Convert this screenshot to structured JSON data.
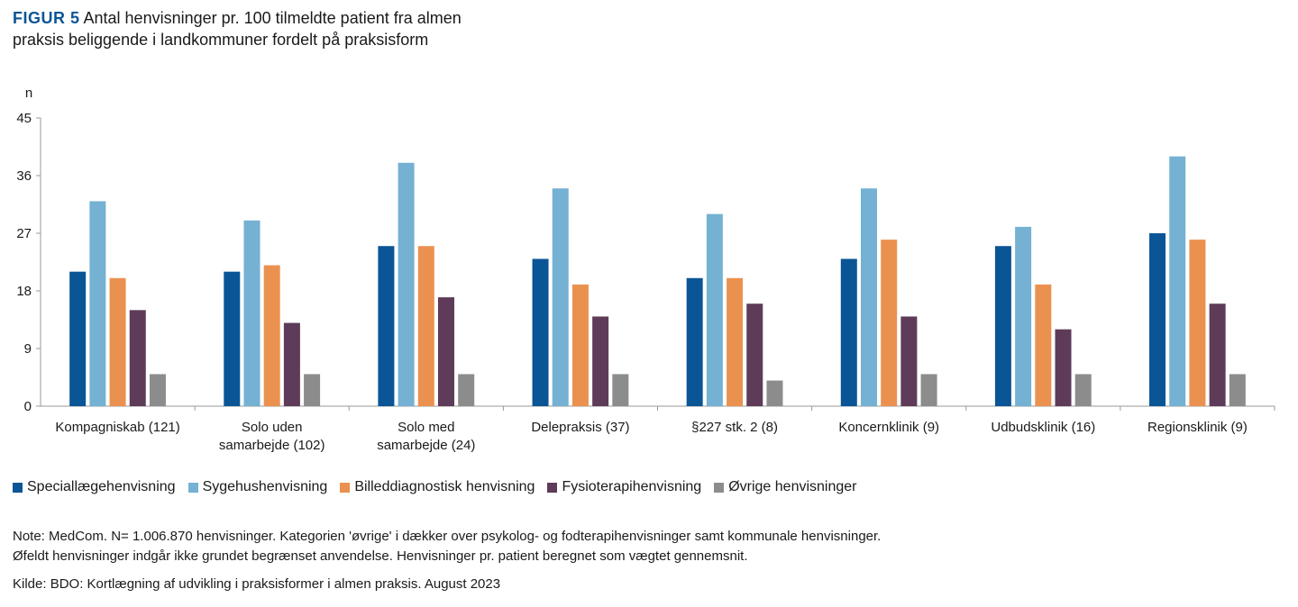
{
  "figure": {
    "label": "FIGUR 5",
    "title_line1": "Antal henvisninger pr. 100 tilmeldte patient fra almen",
    "title_line2": "praksis beliggende i landkommuner fordelt på praksisform"
  },
  "chart_data": {
    "type": "bar",
    "ylabel": "n",
    "ylim": [
      0,
      45
    ],
    "yticks": [
      0,
      9,
      18,
      27,
      36,
      45
    ],
    "grid": false,
    "legend_position": "bottom",
    "categories": [
      [
        "Kompagniskab (121)"
      ],
      [
        "Solo uden",
        "samarbejde (102)"
      ],
      [
        "Solo med",
        "samarbejde (24)"
      ],
      [
        "Delepraksis (37)"
      ],
      [
        "§227 stk. 2 (8)"
      ],
      [
        "Koncernklinik (9)"
      ],
      [
        "Udbudsklinik (16)"
      ],
      [
        "Regionsklinik (9)"
      ]
    ],
    "series": [
      {
        "name": "Speciallægehenvisning",
        "color": "#0a5596",
        "values": [
          21,
          21,
          25,
          23,
          20,
          23,
          25,
          27
        ]
      },
      {
        "name": "Sygehushenvisning",
        "color": "#74b1d3",
        "values": [
          32,
          29,
          38,
          34,
          30,
          34,
          28,
          39
        ]
      },
      {
        "name": "Billeddiagnostisk henvisning",
        "color": "#eb9150",
        "values": [
          20,
          22,
          25,
          19,
          20,
          26,
          19,
          26
        ]
      },
      {
        "name": "Fysioterapihenvisning",
        "color": "#5e3b58",
        "values": [
          15,
          13,
          17,
          14,
          16,
          14,
          12,
          16
        ]
      },
      {
        "name": "Øvrige henvisninger",
        "color": "#8c8c8c",
        "values": [
          5,
          5,
          5,
          5,
          4,
          5,
          5,
          5
        ]
      }
    ]
  },
  "note": {
    "line1": "Note: MedCom. N= 1.006.870 henvisninger. Kategorien 'øvrige' i dækker over psykolog- og fodterapihenvisninger samt kommunale henvisninger.",
    "line2": "Øfeldt henvisninger indgår ikke grundet begrænset anvendelse. Henvisninger pr. patient beregnet som vægtet gennemsnit."
  },
  "source": "Kilde: BDO: Kortlægning af udvikling i praksisformer i almen praksis. August 2023"
}
